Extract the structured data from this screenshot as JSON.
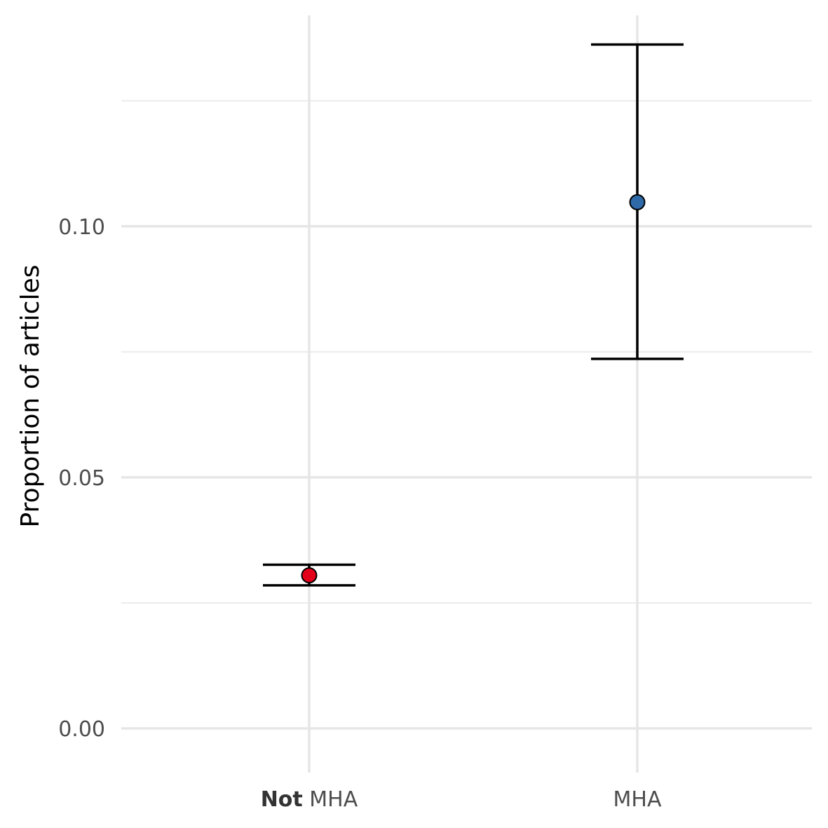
{
  "chart_data": {
    "type": "errorbar",
    "title": "",
    "xlabel": "",
    "ylabel": "Proportion of articles",
    "ylim": [
      -0.006,
      0.142
    ],
    "yticks": [
      0.0,
      0.05,
      0.1
    ],
    "ytick_labels": [
      "0.00",
      "0.05",
      "0.10"
    ],
    "grid": true,
    "legend": "none",
    "categories": [
      {
        "bold_part": "Not",
        "rest": " MHA",
        "label": "Not MHA"
      },
      {
        "bold_part": "",
        "rest": "MHA",
        "label": "MHA"
      }
    ],
    "points": [
      {
        "category": "Not MHA",
        "value": 0.0305,
        "lower": 0.0285,
        "upper": 0.0326,
        "color": "#e3001b"
      },
      {
        "category": "MHA",
        "value": 0.1048,
        "lower": 0.0736,
        "upper": 0.1362,
        "color": "#2f6aa8"
      }
    ]
  }
}
